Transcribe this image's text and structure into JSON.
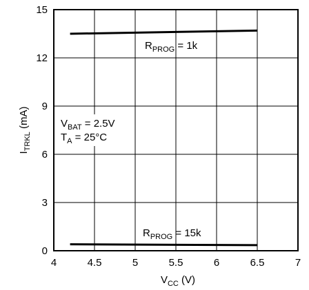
{
  "chart_data": {
    "type": "line",
    "title": "",
    "xlabel": {
      "main": "V",
      "sub": "CC",
      "rest": " (V)"
    },
    "ylabel": {
      "main": "I",
      "sub": "TRKL",
      "rest": " (mA)"
    },
    "xlim": [
      4,
      7
    ],
    "ylim": [
      0,
      15
    ],
    "x_ticks": [
      4,
      4.5,
      5,
      5.5,
      6,
      6.5,
      7
    ],
    "x_tick_labels": [
      "4",
      "4.5",
      "5",
      "5.5",
      "6",
      "6.5",
      "7"
    ],
    "y_ticks": [
      0,
      3,
      6,
      9,
      12,
      15
    ],
    "y_tick_labels": [
      "0",
      "3",
      "6",
      "9",
      "12",
      "15"
    ],
    "grid": true,
    "series": [
      {
        "name": "RPROG = 1k",
        "label": {
          "main": "R",
          "sub": "PROG",
          "rest": " = 1k"
        },
        "x": [
          4.2,
          6.5
        ],
        "y": [
          13.5,
          13.7
        ]
      },
      {
        "name": "RPROG = 15k",
        "label": {
          "main": "R",
          "sub": "PROG",
          "rest": " = 15k"
        },
        "x": [
          4.2,
          6.5
        ],
        "y": [
          0.4,
          0.35
        ]
      }
    ],
    "annotations": [
      {
        "main": "V",
        "sub": "BAT",
        "rest": " = 2.5V"
      },
      {
        "main": "T",
        "sub": "A",
        "rest": " = 25°C"
      }
    ],
    "colors": {
      "line": "#000000",
      "grid": "#000000",
      "background": "#ffffff"
    }
  }
}
